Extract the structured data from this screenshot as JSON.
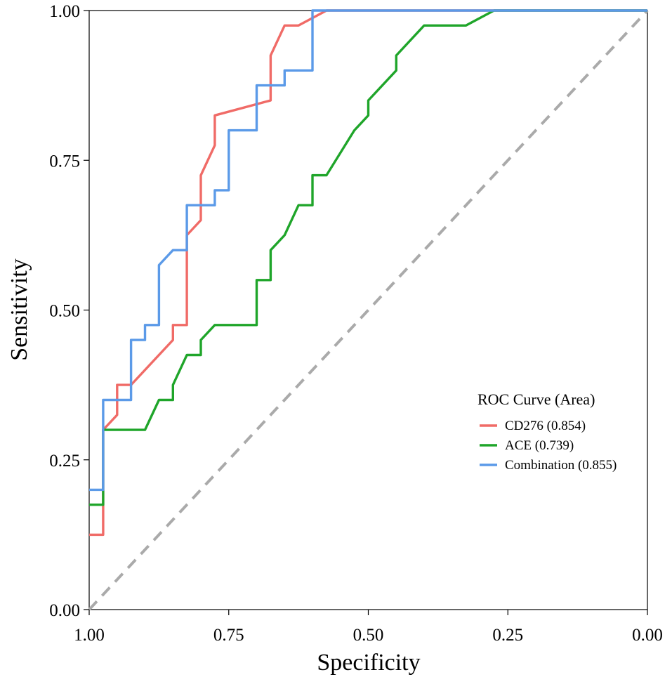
{
  "chart_data": {
    "type": "line",
    "title": "",
    "xlabel": "Specificity",
    "ylabel": "Sensitivity",
    "xlim": [
      1.0,
      0.0
    ],
    "ylim": [
      0.0,
      1.0
    ],
    "x_ticks": [
      "1.00",
      "0.75",
      "0.50",
      "0.25",
      "0.00"
    ],
    "y_ticks": [
      "0.00",
      "0.25",
      "0.50",
      "0.75",
      "1.00"
    ],
    "grid": false,
    "legend": {
      "title": "ROC Curve (Area)",
      "position": "right",
      "entries": [
        {
          "name": "CD276",
          "auc": "(0.854)"
        },
        {
          "name": "ACE",
          "auc": "(0.739)"
        },
        {
          "name": "Combination",
          "auc": "(0.855)"
        }
      ]
    },
    "reference_line": {
      "style": "dashed",
      "color": "#aaaaaa",
      "points": [
        [
          1.0,
          0.0
        ],
        [
          0.0,
          1.0
        ]
      ]
    },
    "series": [
      {
        "name": "CD276",
        "color": "#f06b67",
        "points": [
          [
            1.0,
            0.125
          ],
          [
            0.975,
            0.125
          ],
          [
            0.975,
            0.3
          ],
          [
            0.95,
            0.325
          ],
          [
            0.95,
            0.375
          ],
          [
            0.925,
            0.375
          ],
          [
            0.85,
            0.45
          ],
          [
            0.85,
            0.475
          ],
          [
            0.825,
            0.475
          ],
          [
            0.825,
            0.625
          ],
          [
            0.8,
            0.65
          ],
          [
            0.8,
            0.725
          ],
          [
            0.775,
            0.775
          ],
          [
            0.775,
            0.825
          ],
          [
            0.675,
            0.85
          ],
          [
            0.675,
            0.925
          ],
          [
            0.65,
            0.975
          ],
          [
            0.625,
            0.975
          ],
          [
            0.575,
            1.0
          ],
          [
            0.55,
            1.0
          ],
          [
            0.0,
            1.0
          ]
        ]
      },
      {
        "name": "ACE",
        "color": "#1fa52a",
        "points": [
          [
            1.0,
            0.175
          ],
          [
            0.975,
            0.175
          ],
          [
            0.975,
            0.3
          ],
          [
            0.9,
            0.3
          ],
          [
            0.875,
            0.35
          ],
          [
            0.85,
            0.35
          ],
          [
            0.85,
            0.375
          ],
          [
            0.825,
            0.425
          ],
          [
            0.8,
            0.425
          ],
          [
            0.8,
            0.45
          ],
          [
            0.775,
            0.475
          ],
          [
            0.7,
            0.475
          ],
          [
            0.7,
            0.55
          ],
          [
            0.675,
            0.55
          ],
          [
            0.675,
            0.6
          ],
          [
            0.65,
            0.625
          ],
          [
            0.625,
            0.675
          ],
          [
            0.6,
            0.675
          ],
          [
            0.6,
            0.725
          ],
          [
            0.575,
            0.725
          ],
          [
            0.525,
            0.8
          ],
          [
            0.5,
            0.825
          ],
          [
            0.5,
            0.85
          ],
          [
            0.45,
            0.9
          ],
          [
            0.45,
            0.925
          ],
          [
            0.4,
            0.975
          ],
          [
            0.325,
            0.975
          ],
          [
            0.275,
            1.0
          ],
          [
            0.0,
            1.0
          ]
        ]
      },
      {
        "name": "Combination",
        "color": "#5b9ae8",
        "points": [
          [
            1.0,
            0.2
          ],
          [
            0.975,
            0.2
          ],
          [
            0.975,
            0.35
          ],
          [
            0.925,
            0.35
          ],
          [
            0.925,
            0.45
          ],
          [
            0.9,
            0.45
          ],
          [
            0.9,
            0.475
          ],
          [
            0.875,
            0.475
          ],
          [
            0.875,
            0.575
          ],
          [
            0.85,
            0.6
          ],
          [
            0.825,
            0.6
          ],
          [
            0.825,
            0.675
          ],
          [
            0.775,
            0.675
          ],
          [
            0.775,
            0.7
          ],
          [
            0.75,
            0.7
          ],
          [
            0.75,
            0.8
          ],
          [
            0.7,
            0.8
          ],
          [
            0.7,
            0.875
          ],
          [
            0.65,
            0.875
          ],
          [
            0.65,
            0.9
          ],
          [
            0.6,
            0.9
          ],
          [
            0.6,
            1.0
          ],
          [
            0.0,
            1.0
          ]
        ]
      }
    ]
  }
}
